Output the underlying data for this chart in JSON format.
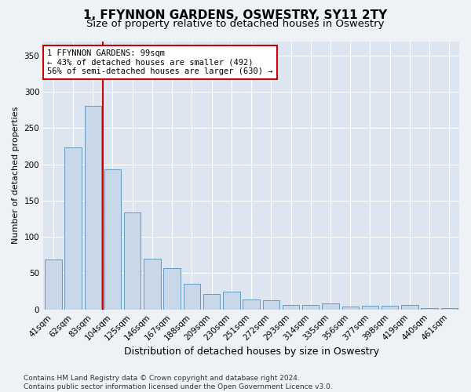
{
  "title": "1, FFYNNON GARDENS, OSWESTRY, SY11 2TY",
  "subtitle": "Size of property relative to detached houses in Oswestry",
  "xlabel": "Distribution of detached houses by size in Oswestry",
  "ylabel": "Number of detached properties",
  "categories": [
    "41sqm",
    "62sqm",
    "83sqm",
    "104sqm",
    "125sqm",
    "146sqm",
    "167sqm",
    "188sqm",
    "209sqm",
    "230sqm",
    "251sqm",
    "272sqm",
    "293sqm",
    "314sqm",
    "335sqm",
    "356sqm",
    "377sqm",
    "398sqm",
    "419sqm",
    "440sqm",
    "461sqm"
  ],
  "values": [
    69,
    223,
    281,
    193,
    134,
    70,
    57,
    35,
    21,
    25,
    14,
    13,
    6,
    6,
    8,
    4,
    5,
    5,
    6,
    2,
    2
  ],
  "bar_color": "#c8d8e8",
  "bar_edge_color": "#6699bb",
  "vline_color": "#cc0000",
  "vline_x_index": 2.5,
  "annotation_text": "1 FFYNNON GARDENS: 99sqm\n← 43% of detached houses are smaller (492)\n56% of semi-detached houses are larger (630) →",
  "annotation_box_facecolor": "#ffffff",
  "annotation_box_edgecolor": "#cc0000",
  "ylim": [
    0,
    370
  ],
  "yticks": [
    0,
    50,
    100,
    150,
    200,
    250,
    300,
    350
  ],
  "background_color": "#eef2f7",
  "plot_bg_color": "#dde6f0",
  "grid_color": "#ffffff",
  "footer": "Contains HM Land Registry data © Crown copyright and database right 2024.\nContains public sector information licensed under the Open Government Licence v3.0.",
  "title_fontsize": 11,
  "subtitle_fontsize": 9.5,
  "xlabel_fontsize": 9,
  "ylabel_fontsize": 8,
  "tick_fontsize": 7.5,
  "annotation_fontsize": 7.5,
  "footer_fontsize": 6.5
}
